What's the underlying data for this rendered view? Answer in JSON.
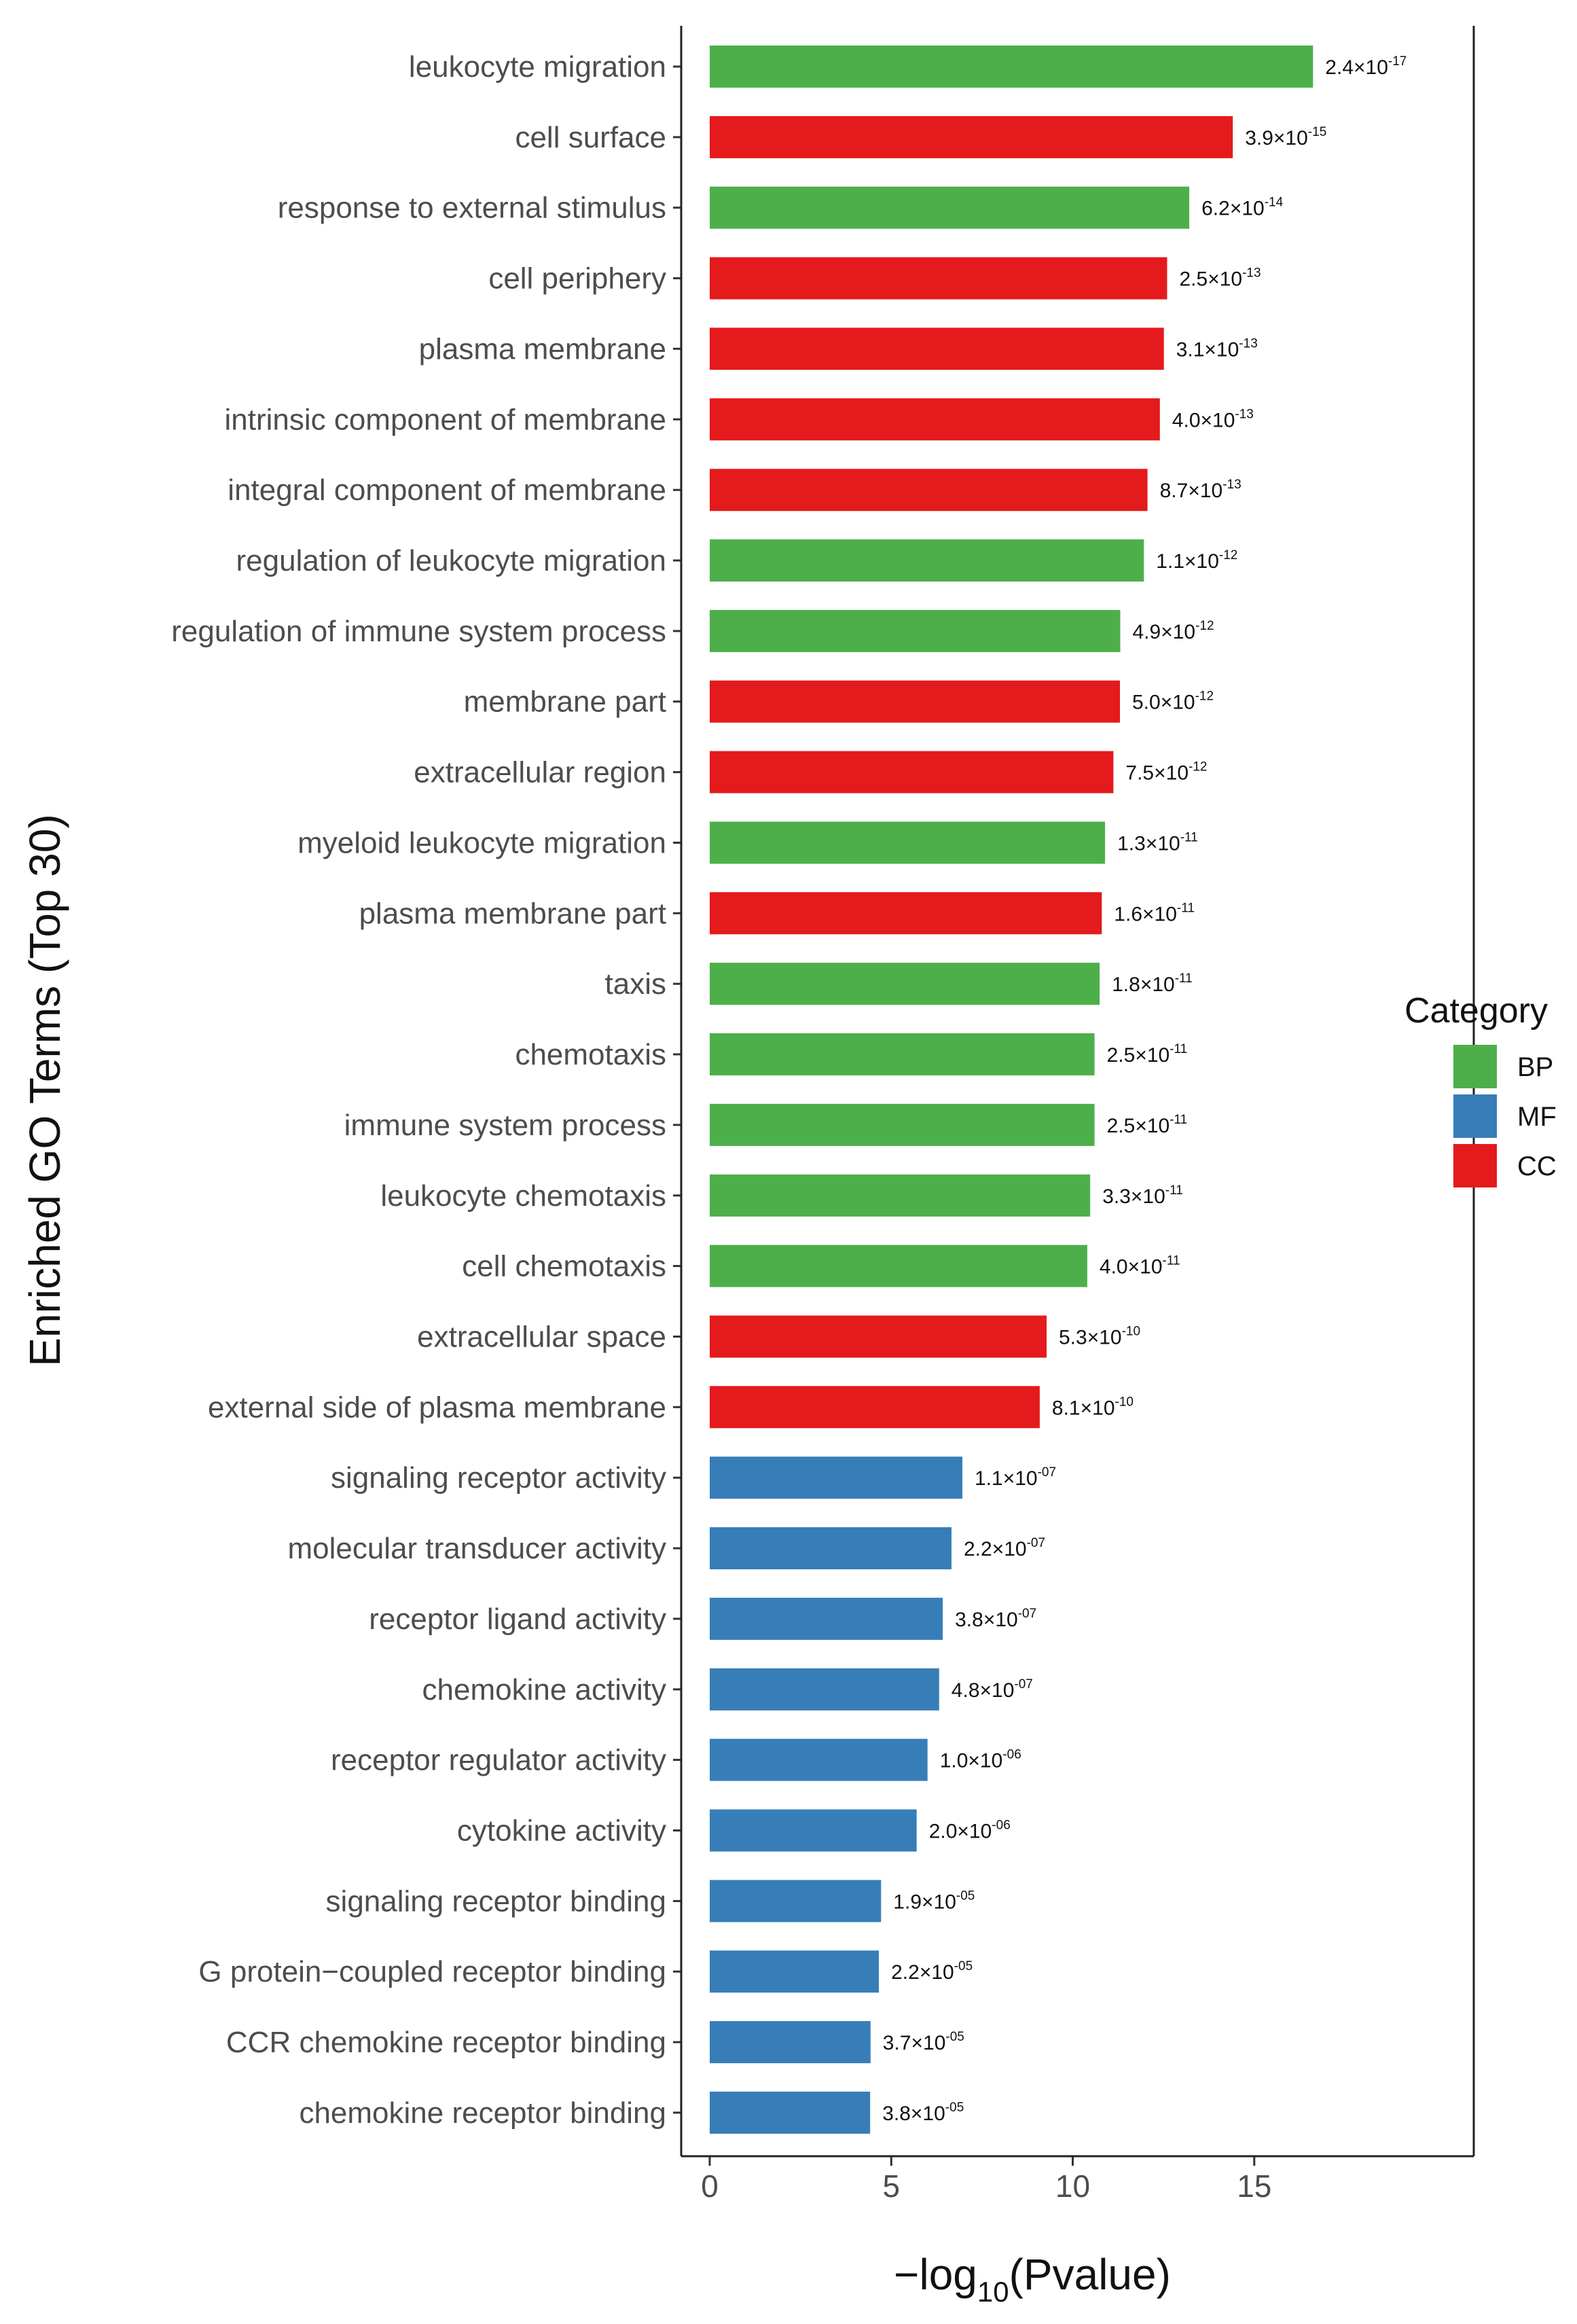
{
  "chart_data": {
    "type": "bar",
    "orientation": "horizontal",
    "ylabel": "Enriched GO Terms (Top 30)",
    "xlabel": {
      "prefix": "−log",
      "subscript": "10",
      "suffix": "(Pvalue)"
    },
    "xlim": [
      0,
      21.8
    ],
    "xticks": [
      0,
      5,
      10,
      15
    ],
    "legend": {
      "title": "Category",
      "placement": "right",
      "entries": [
        {
          "name": "BP",
          "color": "#4daf4a"
        },
        {
          "name": "MF",
          "color": "#377eb8"
        },
        {
          "name": "CC",
          "color": "#e41a1c"
        }
      ]
    },
    "terms": [
      {
        "term": "leukocyte migration",
        "category": "BP",
        "value": 16.62,
        "mantissa": "2.4",
        "exponent": "-17"
      },
      {
        "term": "cell surface",
        "category": "CC",
        "value": 14.41,
        "mantissa": "3.9",
        "exponent": "-15"
      },
      {
        "term": "response to external stimulus",
        "category": "BP",
        "value": 13.21,
        "mantissa": "6.2",
        "exponent": "-14"
      },
      {
        "term": "cell periphery",
        "category": "CC",
        "value": 12.6,
        "mantissa": "2.5",
        "exponent": "-13"
      },
      {
        "term": "plasma membrane",
        "category": "CC",
        "value": 12.51,
        "mantissa": "3.1",
        "exponent": "-13"
      },
      {
        "term": "intrinsic component of membrane",
        "category": "CC",
        "value": 12.4,
        "mantissa": "4.0",
        "exponent": "-13"
      },
      {
        "term": "integral component of membrane",
        "category": "CC",
        "value": 12.06,
        "mantissa": "8.7",
        "exponent": "-13"
      },
      {
        "term": "regulation of leukocyte migration",
        "category": "BP",
        "value": 11.96,
        "mantissa": "1.1",
        "exponent": "-12"
      },
      {
        "term": "regulation of immune system process",
        "category": "BP",
        "value": 11.31,
        "mantissa": "4.9",
        "exponent": "-12"
      },
      {
        "term": "membrane part",
        "category": "CC",
        "value": 11.3,
        "mantissa": "5.0",
        "exponent": "-12"
      },
      {
        "term": "extracellular region",
        "category": "CC",
        "value": 11.12,
        "mantissa": "7.5",
        "exponent": "-12"
      },
      {
        "term": "myeloid leukocyte migration",
        "category": "BP",
        "value": 10.89,
        "mantissa": "1.3",
        "exponent": "-11"
      },
      {
        "term": "plasma membrane part",
        "category": "CC",
        "value": 10.8,
        "mantissa": "1.6",
        "exponent": "-11"
      },
      {
        "term": "taxis",
        "category": "BP",
        "value": 10.74,
        "mantissa": "1.8",
        "exponent": "-11"
      },
      {
        "term": "chemotaxis",
        "category": "BP",
        "value": 10.6,
        "mantissa": "2.5",
        "exponent": "-11"
      },
      {
        "term": "immune system process",
        "category": "BP",
        "value": 10.6,
        "mantissa": "2.5",
        "exponent": "-11"
      },
      {
        "term": "leukocyte chemotaxis",
        "category": "BP",
        "value": 10.48,
        "mantissa": "3.3",
        "exponent": "-11"
      },
      {
        "term": "cell chemotaxis",
        "category": "BP",
        "value": 10.4,
        "mantissa": "4.0",
        "exponent": "-11"
      },
      {
        "term": "extracellular space",
        "category": "CC",
        "value": 9.28,
        "mantissa": "5.3",
        "exponent": "-10"
      },
      {
        "term": "external side of plasma membrane",
        "category": "CC",
        "value": 9.09,
        "mantissa": "8.1",
        "exponent": "-10"
      },
      {
        "term": "signaling receptor activity",
        "category": "MF",
        "value": 6.96,
        "mantissa": "1.1",
        "exponent": "-07"
      },
      {
        "term": "molecular transducer activity",
        "category": "MF",
        "value": 6.66,
        "mantissa": "2.2",
        "exponent": "-07"
      },
      {
        "term": "receptor ligand activity",
        "category": "MF",
        "value": 6.42,
        "mantissa": "3.8",
        "exponent": "-07"
      },
      {
        "term": "chemokine activity",
        "category": "MF",
        "value": 6.32,
        "mantissa": "4.8",
        "exponent": "-07"
      },
      {
        "term": "receptor regulator activity",
        "category": "MF",
        "value": 6.0,
        "mantissa": "1.0",
        "exponent": "-06"
      },
      {
        "term": "cytokine activity",
        "category": "MF",
        "value": 5.7,
        "mantissa": "2.0",
        "exponent": "-06"
      },
      {
        "term": "signaling receptor binding",
        "category": "MF",
        "value": 4.72,
        "mantissa": "1.9",
        "exponent": "-05"
      },
      {
        "term": "G protein−coupled receptor binding",
        "category": "MF",
        "value": 4.66,
        "mantissa": "2.2",
        "exponent": "-05"
      },
      {
        "term": "CCR chemokine receptor binding",
        "category": "MF",
        "value": 4.43,
        "mantissa": "3.7",
        "exponent": "-05"
      },
      {
        "term": "chemokine receptor binding",
        "category": "MF",
        "value": 4.42,
        "mantissa": "3.8",
        "exponent": "-05"
      }
    ]
  }
}
